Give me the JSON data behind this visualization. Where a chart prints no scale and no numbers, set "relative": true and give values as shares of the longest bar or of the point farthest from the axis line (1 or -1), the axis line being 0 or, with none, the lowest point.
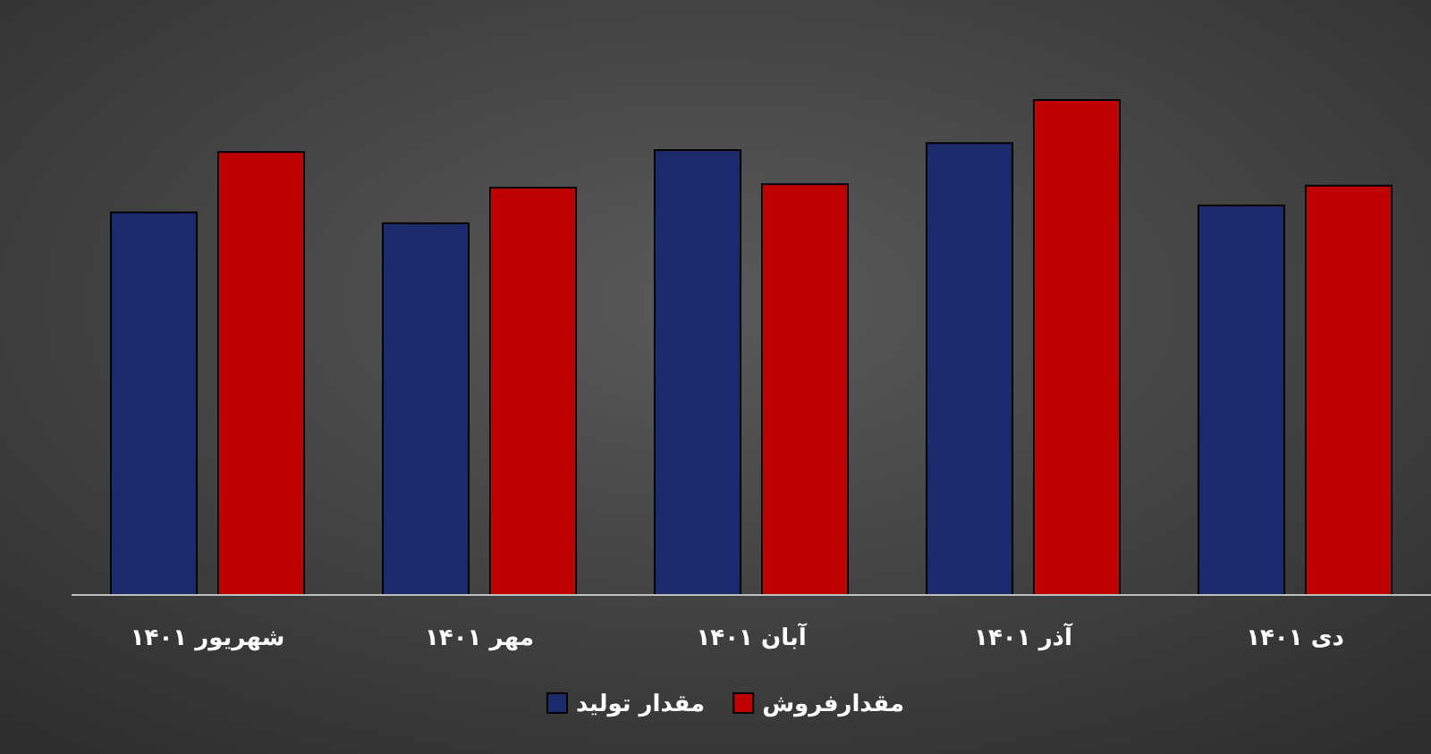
{
  "chart_data": {
    "type": "bar",
    "relative": true,
    "legend": "bottom",
    "categories": [
      "شهریور ۱۴۰۱",
      "مهر ۱۴۰۱",
      "آبان ۱۴۰۱",
      "آذر ۱۴۰۱",
      "دی ۱۴۰۱"
    ],
    "series": [
      {
        "name": "مقدار تولید",
        "color": "#1b2a6b",
        "values": [
          0.773,
          0.751,
          0.899,
          0.913,
          0.787
        ]
      },
      {
        "name": "مقدارفروش",
        "color": "#c00000",
        "values": [
          0.895,
          0.823,
          0.83,
          1,
          0.827
        ]
      }
    ]
  }
}
